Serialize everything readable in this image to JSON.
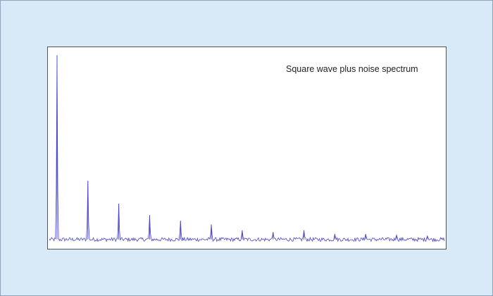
{
  "chart_data": {
    "type": "line",
    "title": "Square wave plus noise spectrum",
    "xlabel": "",
    "ylabel": "",
    "xlim": [
      0,
      1024
    ],
    "ylim": [
      0,
      1.0
    ],
    "grid": false,
    "series_color": "#4b47c9",
    "fundamental_bin": 20,
    "harmonic_step": 40,
    "harmonic_peaks": [
      {
        "harmonic": 1,
        "bin": 20,
        "value": 0.98
      },
      {
        "harmonic": 3,
        "bin": 100,
        "value": 0.32
      },
      {
        "harmonic": 5,
        "bin": 180,
        "value": 0.2
      },
      {
        "harmonic": 7,
        "bin": 260,
        "value": 0.14
      },
      {
        "harmonic": 9,
        "bin": 340,
        "value": 0.11
      },
      {
        "harmonic": 11,
        "bin": 420,
        "value": 0.09
      },
      {
        "harmonic": 13,
        "bin": 500,
        "value": 0.06
      },
      {
        "harmonic": 15,
        "bin": 580,
        "value": 0.05
      },
      {
        "harmonic": 17,
        "bin": 660,
        "value": 0.06
      },
      {
        "harmonic": 19,
        "bin": 740,
        "value": 0.04
      },
      {
        "harmonic": 21,
        "bin": 820,
        "value": 0.04
      },
      {
        "harmonic": 23,
        "bin": 900,
        "value": 0.035
      },
      {
        "harmonic": 25,
        "bin": 980,
        "value": 0.03
      }
    ],
    "noise_floor": 0.012,
    "noise_amplitude": 0.01
  }
}
